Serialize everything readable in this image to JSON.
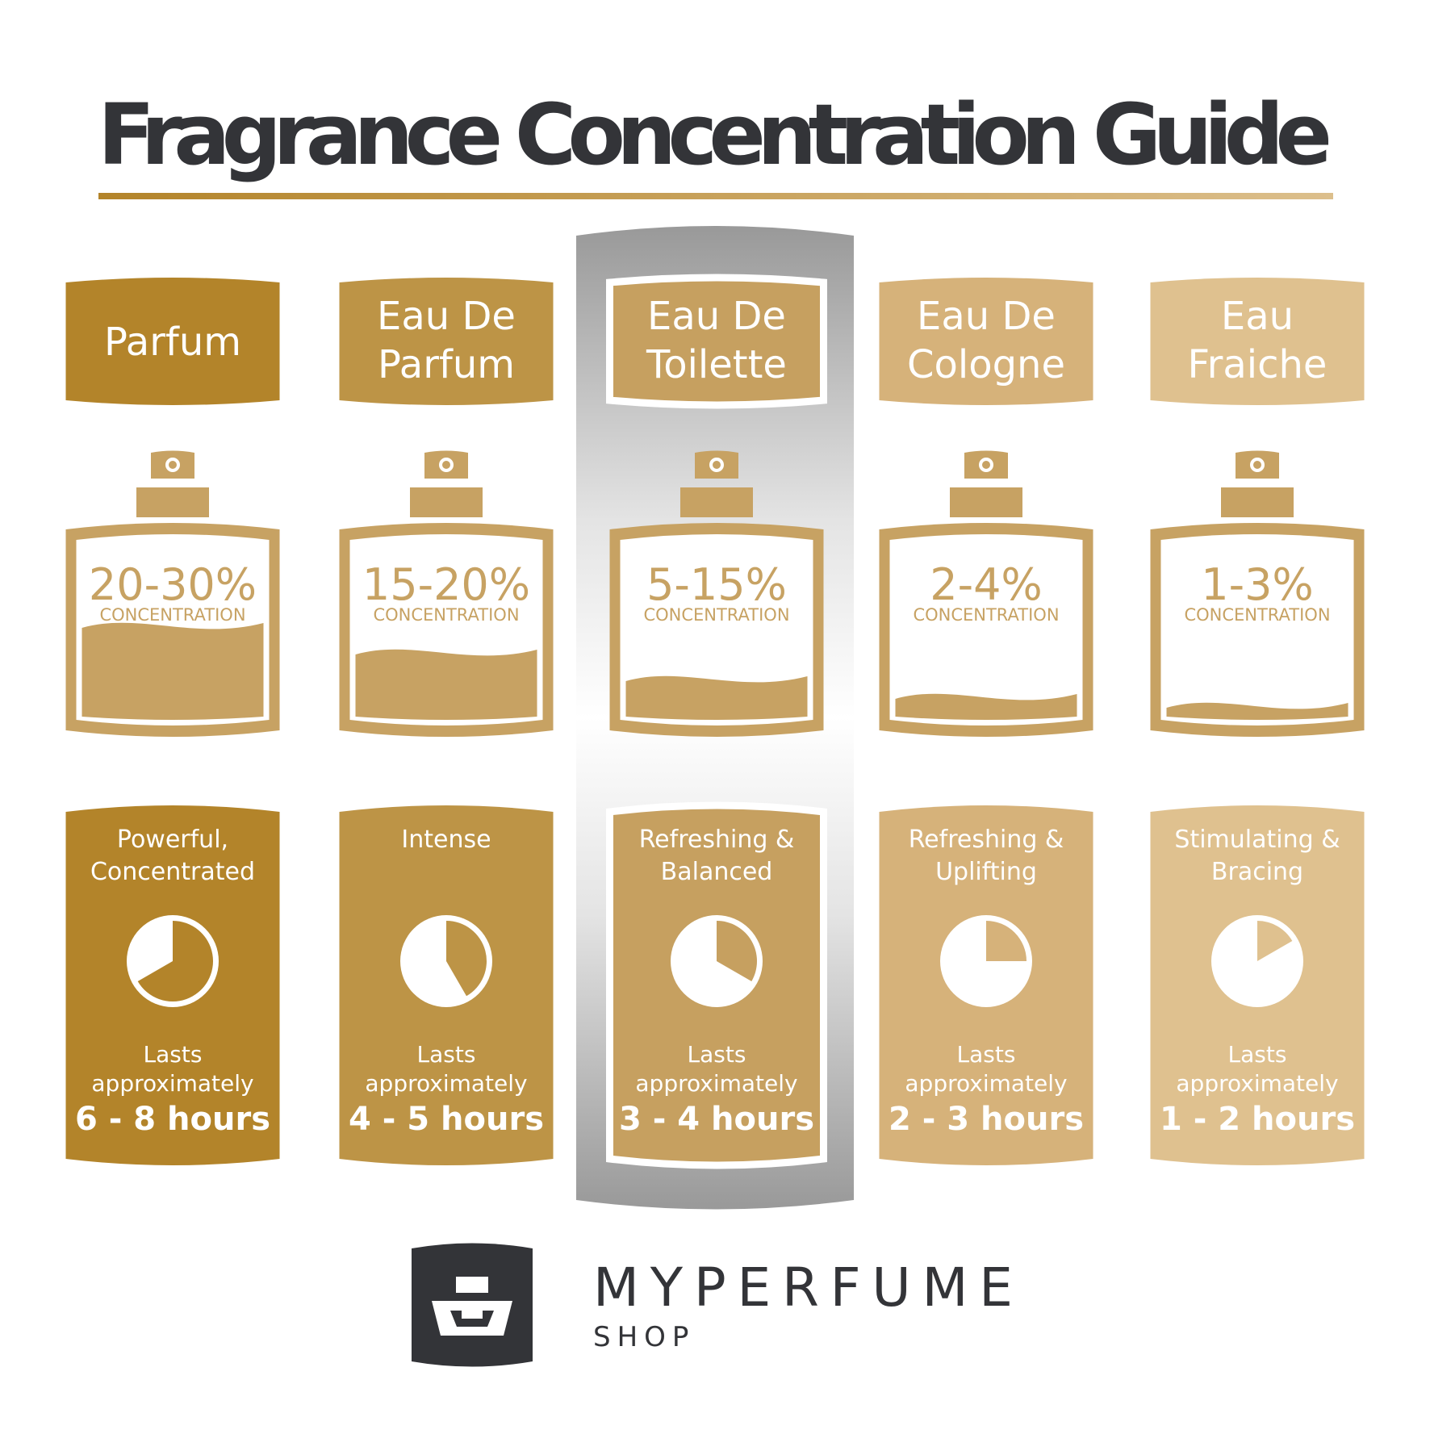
{
  "title": "Fragrance Concentration Guide",
  "colors": {
    "title": "#333438",
    "underline": "#b98d33",
    "bottle": "#c7a263",
    "highlight_gray": "#999999",
    "logo": "#333438"
  },
  "columns": [
    {
      "name_lines": [
        "Parfum"
      ],
      "concentration": "20-30%",
      "concentration_label": "CONCENTRATION",
      "description_lines": [
        "Powerful,",
        "Concentrated"
      ],
      "lasts_line1": "Lasts",
      "lasts_line2": "approximately",
      "duration": "6 - 8 hours",
      "color": "#b3842a",
      "fill_level": 0.5,
      "max_hours": 8,
      "highlighted": false
    },
    {
      "name_lines": [
        "Eau De",
        "Parfum"
      ],
      "concentration": "15-20%",
      "concentration_label": "CONCENTRATION",
      "description_lines": [
        "Intense"
      ],
      "lasts_line1": "Lasts",
      "lasts_line2": "approximately",
      "duration": "4 - 5 hours",
      "color": "#bd9446",
      "fill_level": 0.35,
      "max_hours": 5,
      "highlighted": false
    },
    {
      "name_lines": [
        "Eau De",
        "Toilette"
      ],
      "concentration": "5-15%",
      "concentration_label": "CONCENTRATION",
      "description_lines": [
        "Refreshing &",
        "Balanced"
      ],
      "lasts_line1": "Lasts",
      "lasts_line2": "approximately",
      "duration": "3 - 4 hours",
      "color": "#c6a060",
      "fill_level": 0.2,
      "max_hours": 4,
      "highlighted": true
    },
    {
      "name_lines": [
        "Eau De",
        "Cologne"
      ],
      "concentration": "2-4%",
      "concentration_label": "CONCENTRATION",
      "description_lines": [
        "Refreshing &",
        "Uplifting"
      ],
      "lasts_line1": "Lasts",
      "lasts_line2": "approximately",
      "duration": "2 - 3 hours",
      "color": "#d6b27a",
      "fill_level": 0.1,
      "max_hours": 3,
      "highlighted": false
    },
    {
      "name_lines": [
        "Eau",
        "Fraiche"
      ],
      "concentration": "1-3%",
      "concentration_label": "CONCENTRATION",
      "description_lines": [
        "Stimulating &",
        "Bracing"
      ],
      "lasts_line1": "Lasts",
      "lasts_line2": "approximately",
      "duration": "1 - 2 hours",
      "color": "#dfc18f",
      "fill_level": 0.05,
      "max_hours": 2,
      "highlighted": false
    }
  ],
  "logo": {
    "brand": "MYPERFUME",
    "sub": "SHOP",
    "icon": "perfume-bottle-icon"
  }
}
